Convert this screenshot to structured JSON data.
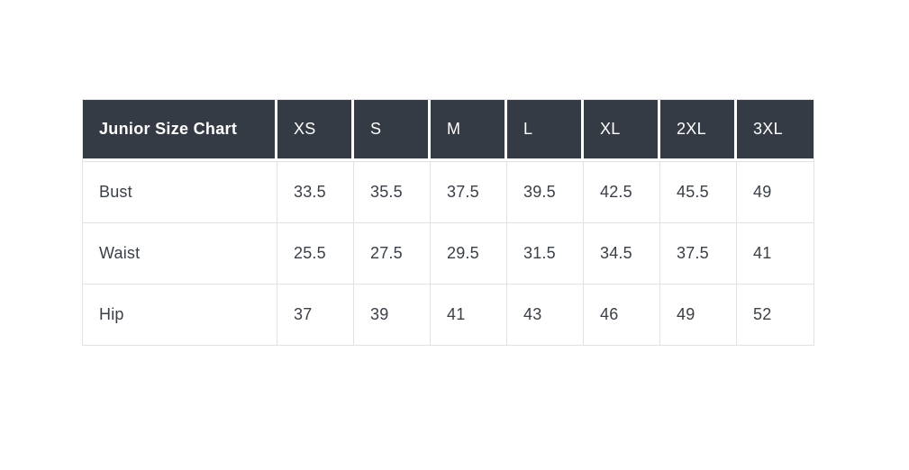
{
  "page": {
    "background": "#ffffff"
  },
  "colors": {
    "header_bg": "#353b44",
    "header_text": "#ffffff",
    "body_text": "#3a4048",
    "grid_border": "#e2e2e2",
    "header_gap": "#ffffff"
  },
  "table": {
    "title": "Junior Size Chart",
    "columns": [
      "XS",
      "S",
      "M",
      "L",
      "XL",
      "2XL",
      "3XL"
    ],
    "rows": [
      {
        "label": "Bust",
        "values": [
          "33.5",
          "35.5",
          "37.5",
          "39.5",
          "42.5",
          "45.5",
          "49"
        ]
      },
      {
        "label": "Waist",
        "values": [
          "25.5",
          "27.5",
          "29.5",
          "31.5",
          "34.5",
          "37.5",
          "41"
        ]
      },
      {
        "label": "Hip",
        "values": [
          "37",
          "39",
          "41",
          "43",
          "46",
          "49",
          "52"
        ]
      }
    ]
  },
  "chart_data": {
    "type": "table",
    "title": "Junior Size Chart",
    "categories": [
      "XS",
      "S",
      "M",
      "L",
      "XL",
      "2XL",
      "3XL"
    ],
    "series": [
      {
        "name": "Bust",
        "values": [
          33.5,
          35.5,
          37.5,
          39.5,
          42.5,
          45.5,
          49
        ]
      },
      {
        "name": "Waist",
        "values": [
          25.5,
          27.5,
          29.5,
          31.5,
          34.5,
          37.5,
          41
        ]
      },
      {
        "name": "Hip",
        "values": [
          37,
          39,
          41,
          43,
          46,
          49,
          52
        ]
      }
    ]
  }
}
